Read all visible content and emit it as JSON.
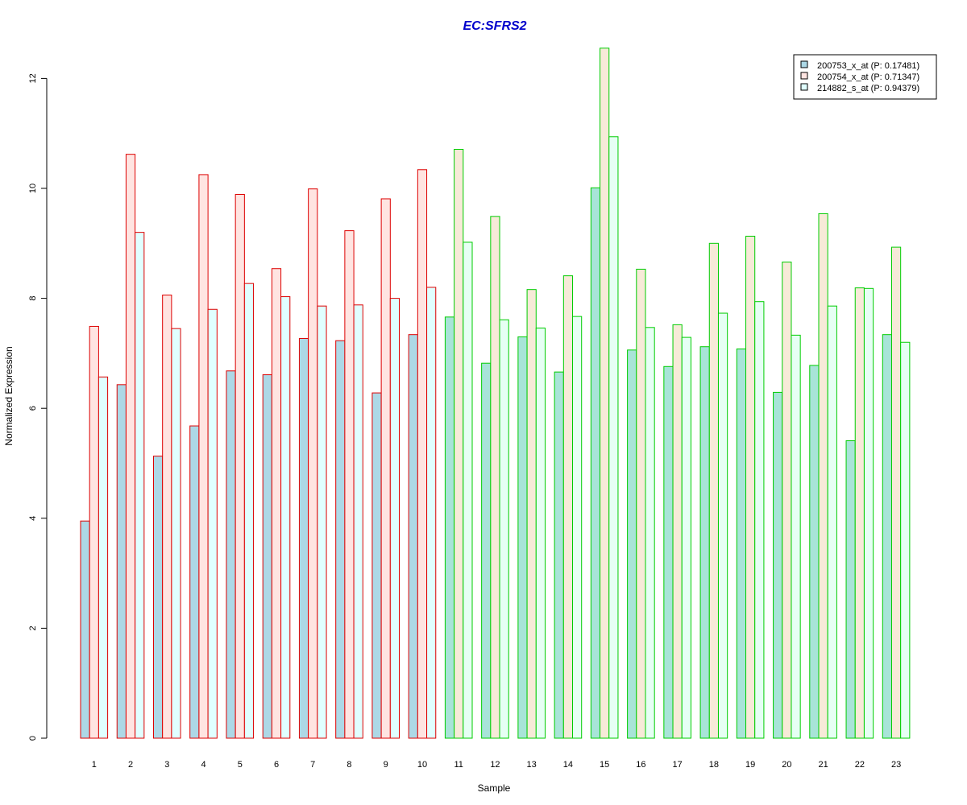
{
  "chart_data": {
    "type": "bar",
    "title": "EC:SFRS2",
    "xlabel": "Sample",
    "ylabel": "Normalized Expression",
    "ylim": [
      0,
      12.5
    ],
    "yticks": [
      0,
      2,
      4,
      6,
      8,
      10,
      12
    ],
    "grid": false,
    "legend_position": "top-right",
    "categories": [
      "1",
      "2",
      "3",
      "4",
      "5",
      "6",
      "7",
      "8",
      "9",
      "10",
      "11",
      "12",
      "13",
      "14",
      "15",
      "16",
      "17",
      "18",
      "19",
      "20",
      "21",
      "22",
      "23"
    ],
    "series": [
      {
        "name": "200753_x_at (P: 0.17481)",
        "values": [
          3.95,
          6.43,
          5.13,
          5.68,
          6.68,
          6.61,
          7.27,
          7.23,
          6.28,
          7.34,
          7.66,
          6.82,
          7.3,
          6.66,
          10.01,
          7.06,
          6.76,
          7.12,
          7.08,
          6.29,
          6.78,
          5.41,
          7.34
        ]
      },
      {
        "name": "200754_x_at (P: 0.71347)",
        "values": [
          7.49,
          10.62,
          8.06,
          10.25,
          9.89,
          8.54,
          9.99,
          9.23,
          9.81,
          10.34,
          10.71,
          9.49,
          8.16,
          8.41,
          12.55,
          8.53,
          7.52,
          9.0,
          9.13,
          8.66,
          9.54,
          8.19,
          8.93
        ]
      },
      {
        "name": "214882_s_at (P: 0.94379)",
        "values": [
          6.57,
          9.2,
          7.45,
          7.8,
          8.27,
          8.03,
          7.86,
          7.88,
          8.0,
          8.2,
          9.02,
          7.61,
          7.46,
          7.67,
          10.94,
          7.47,
          7.29,
          7.73,
          7.94,
          7.33,
          7.86,
          8.18,
          7.2
        ]
      }
    ],
    "colors": {
      "title": "#0000cc",
      "fills": [
        "#add8e6",
        "#ffe4e1",
        "#e0ffff"
      ],
      "group_fills_green": [
        "#a8e4d8",
        "#f7ead8",
        "#e6fff4"
      ],
      "border_red": "#dd0000",
      "border_green": "#00cc00"
    },
    "red_group_samples": 10
  }
}
